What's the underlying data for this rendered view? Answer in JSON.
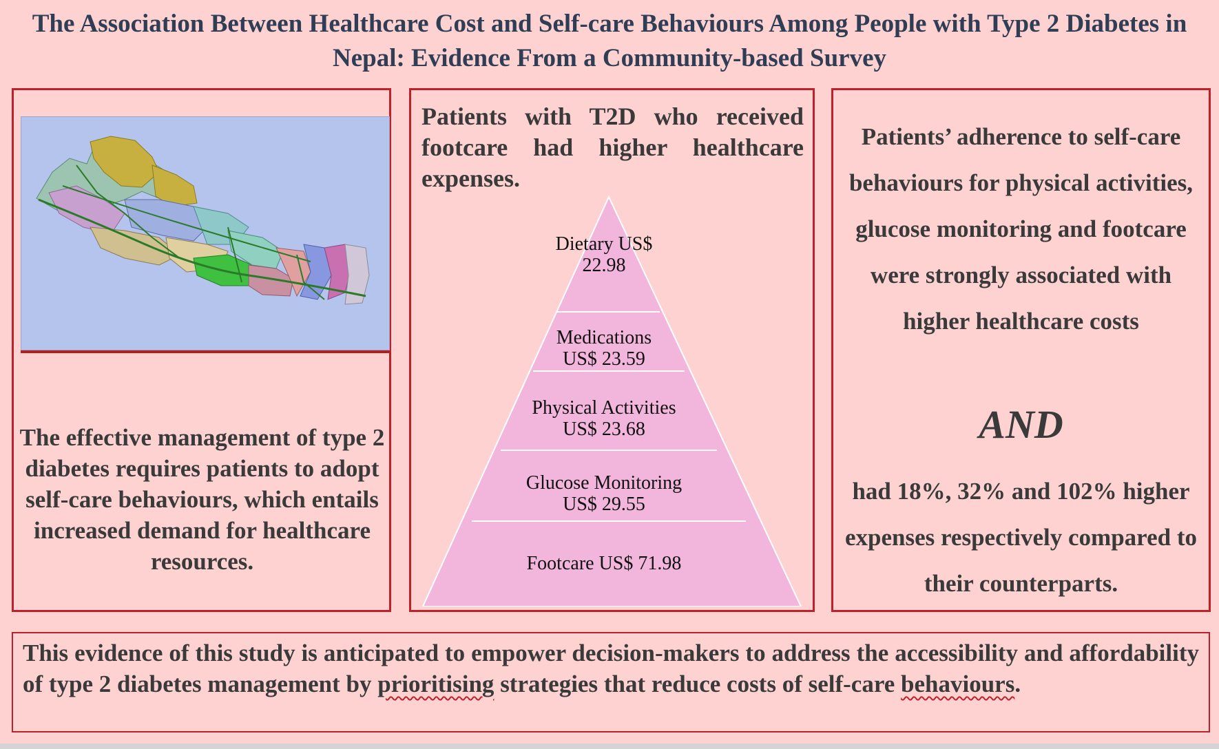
{
  "title": "The Association Between Healthcare Cost and Self-care Behaviours Among People with Type 2 Diabetes in Nepal: Evidence From a Community-based Survey",
  "left_panel": {
    "text": "The effective management of type 2 diabetes requires patients to adopt self-care behaviours, which entails increased demand for healthcare resources."
  },
  "middle_panel": {
    "text": "Patients with T2D who received footcare had higher healthcare expenses.",
    "pyramid": [
      {
        "line1": "Dietary US$",
        "line2": "22.98"
      },
      {
        "line1": "Medications",
        "line2": "US$ 23.59"
      },
      {
        "line1": "Physical Activities",
        "line2": "US$ 23.68"
      },
      {
        "line1": "Glucose Monitoring",
        "line2": "US$ 29.55"
      },
      {
        "line1": "Footcare US$ 71.98",
        "line2": ""
      }
    ]
  },
  "right_panel": {
    "text1": "Patients’ adherence to self-care behaviours for physical activities, glucose monitoring and footcare were strongly associated with higher healthcare costs",
    "and": "AND",
    "text2": "had 18%, 32% and 102% higher expenses respectively compared to their counterparts."
  },
  "bottom": {
    "part1": "This evidence of this study is anticipated to empower decision-makers to address the accessibility and affordability of type 2 diabetes management by ",
    "word1": "prioritising",
    "part2": " strategies that reduce costs of self-care ",
    "word2": "behaviours",
    "part3": "."
  },
  "colors": {
    "background": "#ffd2d2",
    "border": "#c0202a",
    "pyramid_fill": "#f2b6dc",
    "title_text": "#2f3e55"
  }
}
